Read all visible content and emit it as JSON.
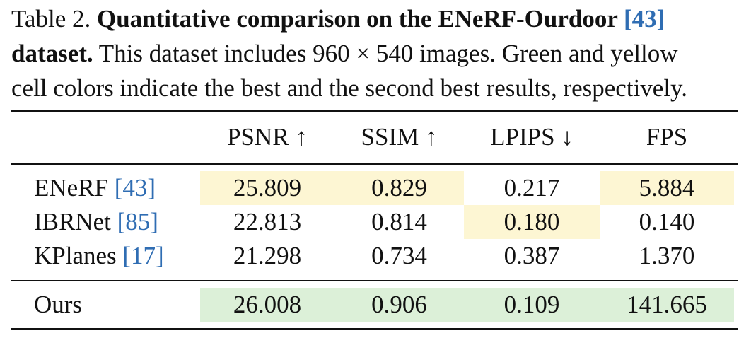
{
  "caption": {
    "prefix": "Table 2. ",
    "bold_title": "Quantitative comparison on the ENeRF-Ourdoor ",
    "title_cite": "[43]",
    "bold_dataset": "dataset.",
    "body_line2": " This dataset includes 960 × 540 images. Green and yellow",
    "body_line3": "cell colors indicate the best and the second best results, respectively."
  },
  "colors": {
    "best": "#dcf0d8",
    "second_best": "#fdf6d3",
    "citation": "#2f6db3"
  },
  "table": {
    "headers": [
      "PSNR ↑",
      "SSIM ↑",
      "LPIPS ↓",
      "FPS"
    ],
    "rows": [
      {
        "method": "ENeRF ",
        "cite": "[43]",
        "values": [
          "25.809",
          "0.829",
          "0.217",
          "5.884"
        ]
      },
      {
        "method": "IBRNet ",
        "cite": "[85]",
        "values": [
          "22.813",
          "0.814",
          "0.180",
          "0.140"
        ]
      },
      {
        "method": "KPlanes ",
        "cite": "[17]",
        "values": [
          "21.298",
          "0.734",
          "0.387",
          "1.370"
        ]
      },
      {
        "method": "Ours",
        "cite": "",
        "values": [
          "26.008",
          "0.906",
          "0.109",
          "141.665"
        ]
      }
    ]
  }
}
